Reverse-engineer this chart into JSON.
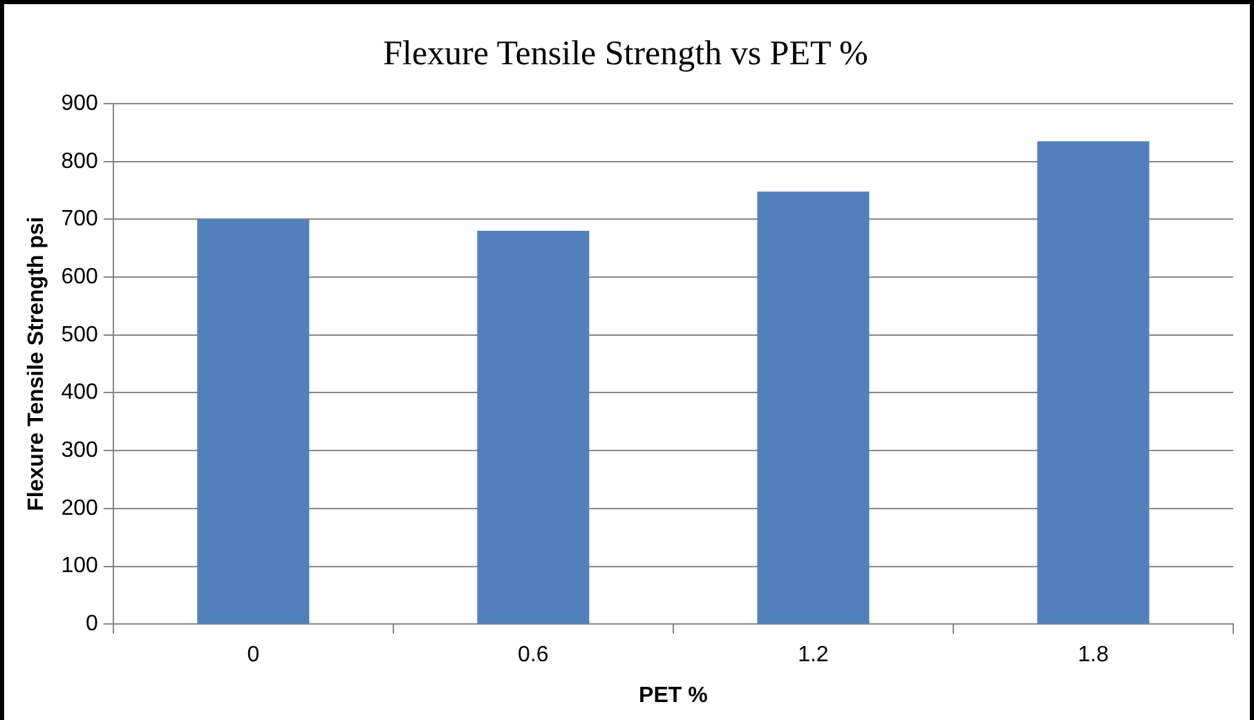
{
  "chart_data": {
    "type": "bar",
    "title": "Flexure Tensile Strength vs PET %",
    "xlabel": "PET %",
    "ylabel": "Flexure Tensile Strength psi",
    "categories": [
      "0",
      "0.6",
      "1.2",
      "1.8"
    ],
    "series": [
      {
        "color": "#4f81bd",
        "values": [
          700,
          680,
          748,
          835
        ]
      }
    ],
    "ylim": [
      0,
      900
    ],
    "yticks": [
      0,
      100,
      200,
      300,
      400,
      500,
      600,
      700,
      800,
      900
    ],
    "grid": "y",
    "legend": false
  }
}
